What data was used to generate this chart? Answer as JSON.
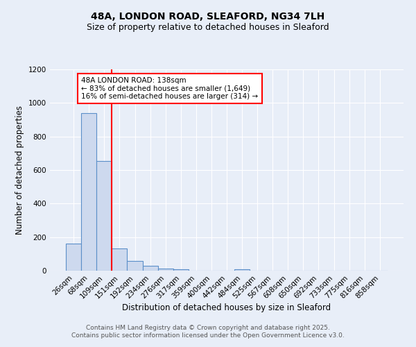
{
  "title": "48A, LONDON ROAD, SLEAFORD, NG34 7LH",
  "subtitle": "Size of property relative to detached houses in Sleaford",
  "xlabel": "Distribution of detached houses by size in Sleaford",
  "ylabel": "Number of detached properties",
  "bar_labels": [
    "26sqm",
    "68sqm",
    "109sqm",
    "151sqm",
    "192sqm",
    "234sqm",
    "276sqm",
    "317sqm",
    "359sqm",
    "400sqm",
    "442sqm",
    "484sqm",
    "525sqm",
    "567sqm",
    "608sqm",
    "650sqm",
    "692sqm",
    "733sqm",
    "775sqm",
    "816sqm",
    "858sqm"
  ],
  "bar_values": [
    163,
    940,
    655,
    132,
    57,
    30,
    12,
    8,
    0,
    0,
    0,
    8,
    0,
    0,
    0,
    0,
    0,
    0,
    0,
    0,
    0
  ],
  "bar_color": "#cdd9ee",
  "bar_edge_color": "#5b8fc9",
  "vline_color": "red",
  "annotation_text": "48A LONDON ROAD: 138sqm\n← 83% of detached houses are smaller (1,649)\n16% of semi-detached houses are larger (314) →",
  "annotation_box_color": "white",
  "annotation_box_edge_color": "red",
  "ylim": [
    0,
    1200
  ],
  "yticks": [
    0,
    200,
    400,
    600,
    800,
    1000,
    1200
  ],
  "footer_line1": "Contains HM Land Registry data © Crown copyright and database right 2025.",
  "footer_line2": "Contains public sector information licensed under the Open Government Licence v3.0.",
  "background_color": "#e8eef8",
  "plot_bg_color": "#e8eef8",
  "grid_color": "#ffffff",
  "title_fontsize": 10,
  "subtitle_fontsize": 9,
  "tick_fontsize": 7.5,
  "label_fontsize": 8.5,
  "footer_fontsize": 6.5,
  "annotation_fontsize": 7.5
}
